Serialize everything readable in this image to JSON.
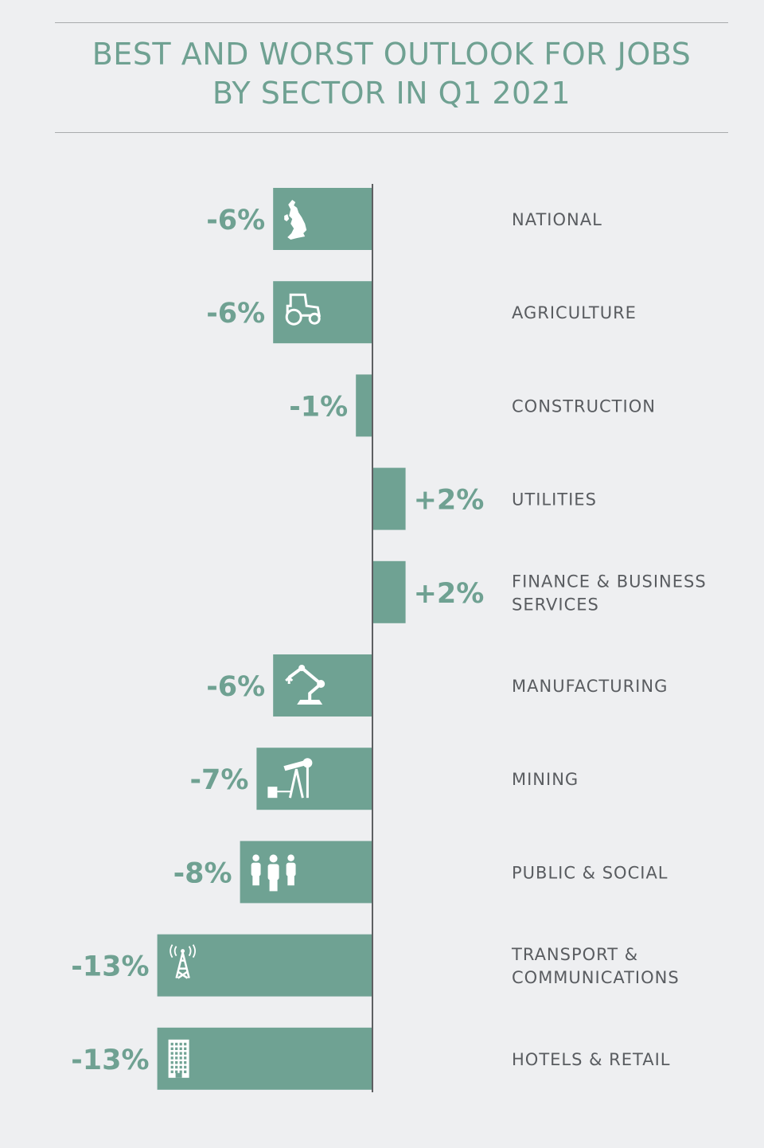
{
  "title_line1": "BEST AND WORST OUTLOOK FOR JOBS",
  "title_line2": "BY SECTOR IN Q1 2021",
  "colors": {
    "bar": "#6fa293",
    "value_text": "#6fa192",
    "label_text": "#595c60",
    "background": "#eeeff1"
  },
  "chart_data": {
    "type": "bar",
    "orientation": "horizontal",
    "title": "BEST AND WORST OUTLOOK FOR JOBS BY SECTOR IN Q1 2021",
    "categories": [
      "NATIONAL",
      "AGRICULTURE",
      "CONSTRUCTION",
      "UTILITIES",
      "FINANCE & BUSINESS SERVICES",
      "MANUFACTURING",
      "MINING",
      "PUBLIC & SOCIAL",
      "TRANSPORT & COMMUNICATIONS",
      "HOTELS & RETAIL"
    ],
    "label_lines": [
      [
        "NATIONAL"
      ],
      [
        "AGRICULTURE"
      ],
      [
        "CONSTRUCTION"
      ],
      [
        "UTILITIES"
      ],
      [
        "FINANCE & BUSINESS",
        "SERVICES"
      ],
      [
        "MANUFACTURING"
      ],
      [
        "MINING"
      ],
      [
        "PUBLIC & SOCIAL"
      ],
      [
        "TRANSPORT &",
        "COMMUNICATIONS"
      ],
      [
        "HOTELS & RETAIL"
      ]
    ],
    "values": [
      -6,
      -6,
      -1,
      2,
      2,
      -6,
      -7,
      -8,
      -13,
      -13
    ],
    "value_labels": [
      "-6%",
      "-6%",
      "-1%",
      "+2%",
      "+2%",
      "-6%",
      "-7%",
      "-8%",
      "-13%",
      "-13%"
    ],
    "icons": [
      "uk-map-icon",
      "tractor-icon",
      null,
      null,
      null,
      "robot-arm-icon",
      "oil-pump-icon",
      "people-icon",
      "radio-tower-icon",
      "building-icon"
    ],
    "xlim": [
      -13,
      2
    ],
    "grid": false
  }
}
